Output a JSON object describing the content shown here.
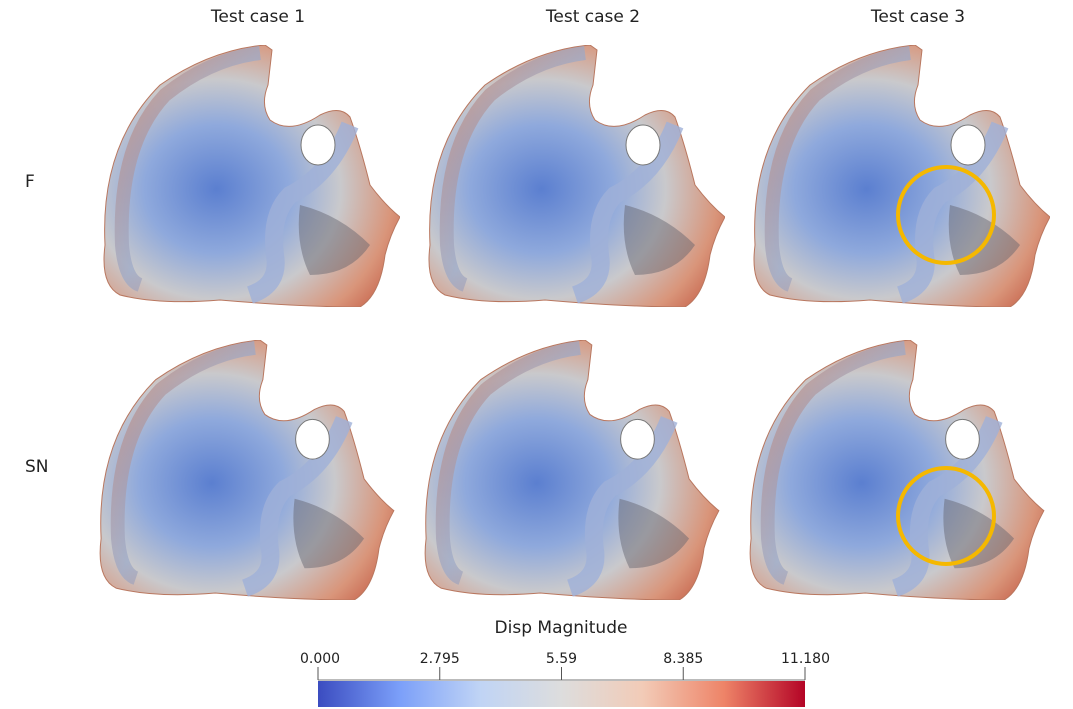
{
  "columns": [
    "Test case 1",
    "Test case 2",
    "Test case 3"
  ],
  "rows": [
    "F",
    "SN"
  ],
  "colorbar": {
    "title": "Disp Magnitude",
    "lim": [
      0,
      11.18
    ],
    "ticks": [
      {
        "value": 0,
        "label": "0.000"
      },
      2.795,
      5.59,
      8.385,
      {
        "value": 11.18,
        "label": "11.180"
      }
    ],
    "colors": [
      "#3b4cc0",
      "#7b9ff9",
      "#c0d4f5",
      "#dddddd",
      "#f2cbb7",
      "#ee8468",
      "#b40426"
    ]
  }
}
